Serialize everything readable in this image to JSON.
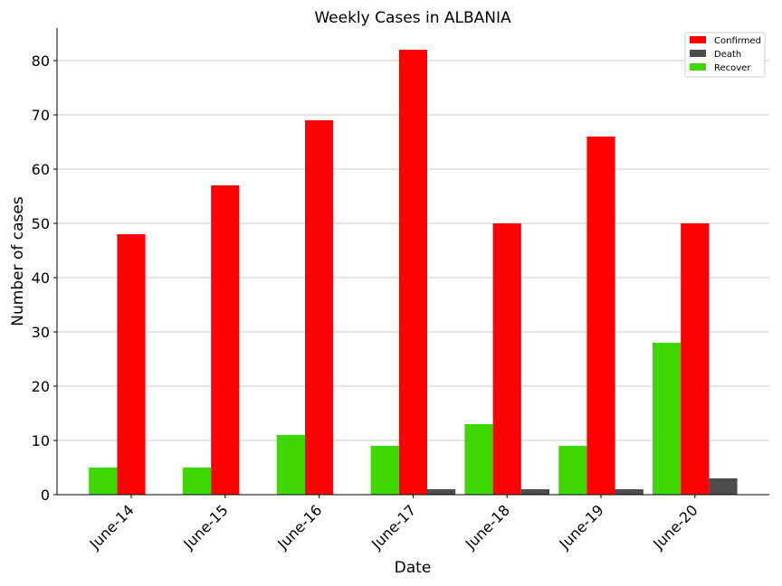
{
  "chart_data": {
    "type": "bar",
    "title": "Weekly Cases in ALBANIA",
    "xlabel": "Date",
    "ylabel": "Number of cases",
    "categories": [
      "June-14",
      "June-15",
      "June-16",
      "June-17",
      "June-18",
      "June-19",
      "June-20"
    ],
    "series": [
      {
        "name": "Recover",
        "values": [
          5,
          5,
          11,
          9,
          13,
          9,
          28
        ],
        "color": "#3fd700"
      },
      {
        "name": "Confirmed",
        "values": [
          48,
          57,
          69,
          82,
          50,
          66,
          50
        ],
        "color": "#ff0000"
      },
      {
        "name": "Death",
        "values": [
          0,
          0,
          0,
          1,
          1,
          1,
          3
        ],
        "color": "#4d4d4d"
      }
    ],
    "legend_order": [
      "Confirmed",
      "Death",
      "Recover"
    ],
    "ylim": [
      0,
      86
    ],
    "yticks": [
      0,
      10,
      20,
      30,
      40,
      50,
      60,
      70,
      80
    ],
    "grid": "horizontal",
    "legend_position": "top-right"
  }
}
